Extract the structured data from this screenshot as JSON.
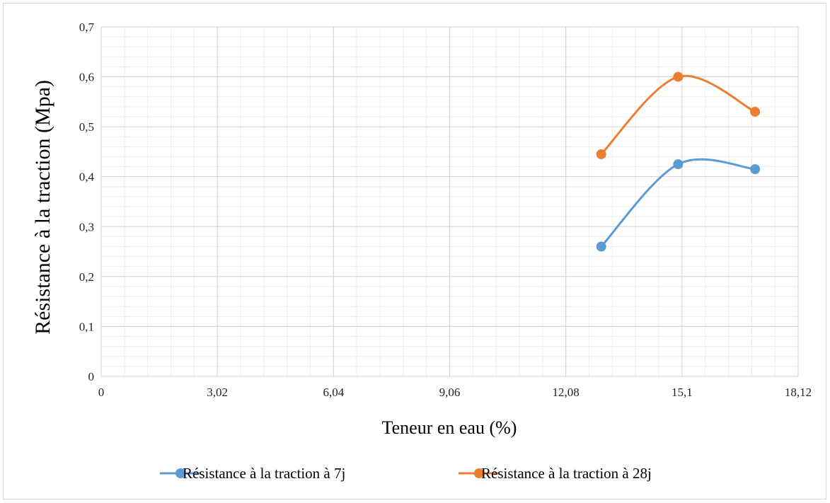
{
  "chart_data": {
    "type": "line",
    "xlabel": "Teneur en eau (%)",
    "ylabel": "Résistance à la traction (Mpa)",
    "xlim": [
      0,
      18.12
    ],
    "ylim": [
      0,
      0.7
    ],
    "x_ticks": [
      "0",
      "3,02",
      "6,04",
      "9,06",
      "12,08",
      "15,1",
      "18,12"
    ],
    "y_ticks": [
      "0",
      "0,1",
      "0,2",
      "0,3",
      "0,4",
      "0,5",
      "0,6",
      "0,7"
    ],
    "grid": true,
    "smooth": true,
    "legend_position": "bottom",
    "series": [
      {
        "name": "Résistance à la traction à 7j",
        "color": "#5b9bd5",
        "points": [
          [
            13.0,
            0.26
          ],
          [
            15.0,
            0.425
          ],
          [
            17.0,
            0.415
          ]
        ]
      },
      {
        "name": "Résistance à la traction à 28j",
        "color": "#ed7d31",
        "points": [
          [
            13.0,
            0.445
          ],
          [
            15.0,
            0.6
          ],
          [
            17.0,
            0.53
          ]
        ]
      }
    ]
  }
}
